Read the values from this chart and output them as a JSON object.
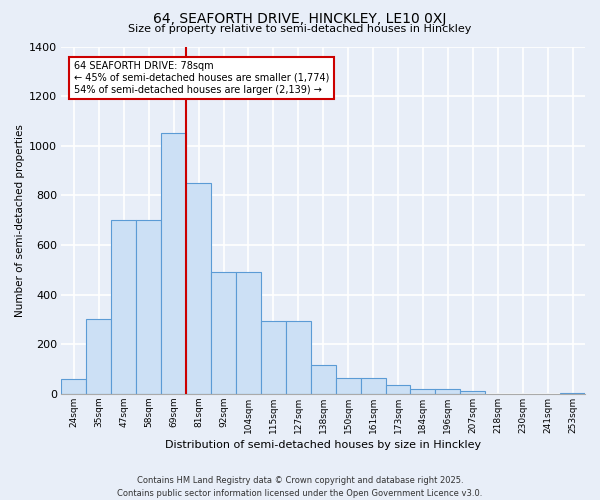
{
  "title1": "64, SEAFORTH DRIVE, HINCKLEY, LE10 0XJ",
  "title2": "Size of property relative to semi-detached houses in Hinckley",
  "xlabel": "Distribution of semi-detached houses by size in Hinckley",
  "ylabel": "Number of semi-detached properties",
  "bar_labels": [
    "24sqm",
    "35sqm",
    "47sqm",
    "58sqm",
    "69sqm",
    "81sqm",
    "92sqm",
    "104sqm",
    "115sqm",
    "127sqm",
    "138sqm",
    "150sqm",
    "161sqm",
    "173sqm",
    "184sqm",
    "196sqm",
    "207sqm",
    "218sqm",
    "230sqm",
    "241sqm",
    "253sqm"
  ],
  "bar_values": [
    60,
    300,
    700,
    700,
    1050,
    850,
    490,
    490,
    295,
    295,
    115,
    65,
    65,
    35,
    20,
    20,
    10,
    0,
    0,
    0,
    5
  ],
  "bar_color": "#cce0f5",
  "bar_edge_color": "#5b9bd5",
  "bg_color": "#e8eef8",
  "grid_color": "#ffffff",
  "annotation_text": "64 SEAFORTH DRIVE: 78sqm\n← 45% of semi-detached houses are smaller (1,774)\n54% of semi-detached houses are larger (2,139) →",
  "annotation_box_color": "#ffffff",
  "annotation_box_edge": "#cc0000",
  "vline_color": "#cc0000",
  "ylim": [
    0,
    1400
  ],
  "yticks": [
    0,
    200,
    400,
    600,
    800,
    1000,
    1200,
    1400
  ],
  "footnote": "Contains HM Land Registry data © Crown copyright and database right 2025.\nContains public sector information licensed under the Open Government Licence v3.0."
}
